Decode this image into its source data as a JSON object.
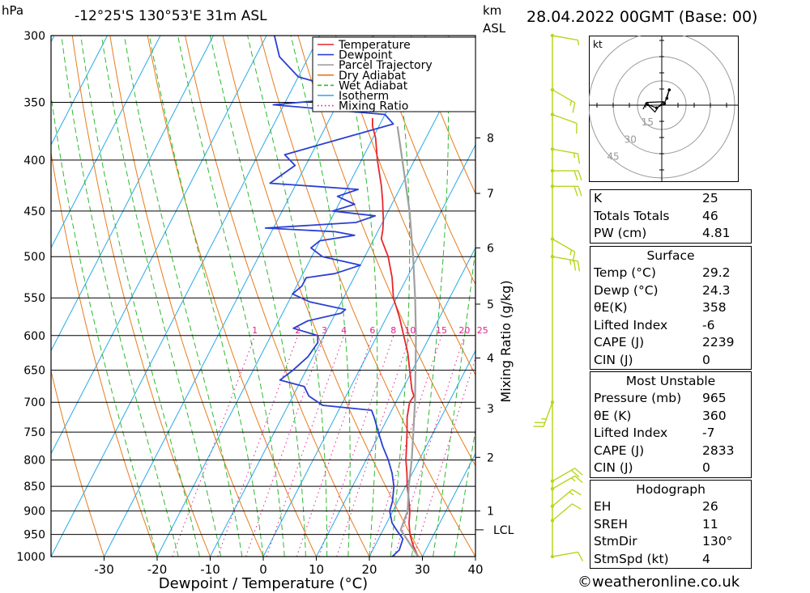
{
  "header": {
    "pressure_unit": "hPa",
    "location": "-12°25'S  130°53'E  31m  ASL",
    "height_unit_km": "km",
    "height_unit_asl": "ASL",
    "datetime": "28.04.2022  00GMT  (Base: 00)"
  },
  "footer": {
    "copyright": "©weatheronline.co.uk"
  },
  "hodograph": {
    "unit_label": "kt",
    "ring_labels": [
      "15",
      "30",
      "45"
    ]
  },
  "colors": {
    "temperature": "#e8262d",
    "dewpoint": "#2b3fd3",
    "parcel": "#a0a0a0",
    "dry_adiabat": "#e87b1b",
    "wet_adiabat": "#2fb92f",
    "isotherm": "#29a9e8",
    "mixing_ratio": "#e0208a",
    "wind_barb": "#b7d61e"
  },
  "indices": {
    "basic": [
      {
        "label": "K",
        "value": "25"
      },
      {
        "label": "Totals Totals",
        "value": "46"
      },
      {
        "label": "PW (cm)",
        "value": "4.81"
      }
    ],
    "surface_title": "Surface",
    "surface": [
      {
        "label": "Temp (°C)",
        "value": "29.2"
      },
      {
        "label": "Dewp (°C)",
        "value": "24.3"
      },
      {
        "label": "θE(K)",
        "value": "358"
      },
      {
        "label": "Lifted Index",
        "value": "-6"
      },
      {
        "label": "CAPE (J)",
        "value": "2239"
      },
      {
        "label": "CIN (J)",
        "value": "0"
      }
    ],
    "mu_title": "Most Unstable",
    "mu": [
      {
        "label": "Pressure (mb)",
        "value": "965"
      },
      {
        "label": "θE (K)",
        "value": "360"
      },
      {
        "label": "Lifted Index",
        "value": "-7"
      },
      {
        "label": "CAPE (J)",
        "value": "2833"
      },
      {
        "label": "CIN (J)",
        "value": "0"
      }
    ],
    "hodo_title": "Hodograph",
    "hodo": [
      {
        "label": "EH",
        "value": "26"
      },
      {
        "label": "SREH",
        "value": "11"
      },
      {
        "label": "StmDir",
        "value": "130°"
      },
      {
        "label": "StmSpd (kt)",
        "value": "4"
      }
    ]
  },
  "chart_data": {
    "type": "line",
    "subtype": "skew-T log-P sounding",
    "xlabel": "Dewpoint / Temperature (°C)",
    "ylabel": "Mixing Ratio (g/kg)",
    "pressure_range_hpa": [
      1000,
      300
    ],
    "pressure_ticks": [
      300,
      350,
      400,
      450,
      500,
      550,
      600,
      650,
      700,
      750,
      800,
      850,
      900,
      950,
      1000
    ],
    "temperature_ticks": [
      -30,
      -20,
      -10,
      0,
      10,
      20,
      30,
      40
    ],
    "temperature_range_at_1000": [
      -40,
      40
    ],
    "height_ticks_km": [
      {
        "label": "1",
        "p": 900
      },
      {
        "label": "2",
        "p": 795
      },
      {
        "label": "3",
        "p": 710
      },
      {
        "label": "4",
        "p": 632
      },
      {
        "label": "5",
        "p": 558
      },
      {
        "label": "6",
        "p": 490
      },
      {
        "label": "7",
        "p": 432
      },
      {
        "label": "8",
        "p": 380
      }
    ],
    "lcl": {
      "label": "LCL",
      "p": 940
    },
    "mixing_ratio_labels": [
      "1",
      "2",
      "3",
      "4",
      "6",
      "8",
      "10",
      "15",
      "20",
      "25"
    ],
    "mixing_ratio_values": [
      1,
      2,
      3,
      4,
      6,
      8,
      10,
      15,
      20,
      25
    ],
    "legend": [
      "Temperature",
      "Dewpoint",
      "Parcel Trajectory",
      "Dry Adiabat",
      "Wet Adiabat",
      "Isotherm",
      "Mixing Ratio"
    ],
    "series": [
      {
        "name": "Temperature",
        "points": [
          [
            1000,
            29.2
          ],
          [
            975,
            27.2
          ],
          [
            950,
            25.5
          ],
          [
            925,
            24.2
          ],
          [
            900,
            23.2
          ],
          [
            875,
            21.8
          ],
          [
            850,
            20.3
          ],
          [
            825,
            19.0
          ],
          [
            800,
            17.5
          ],
          [
            775,
            16.3
          ],
          [
            750,
            15.0
          ],
          [
            725,
            13.6
          ],
          [
            700,
            12.6
          ],
          [
            690,
            12.8
          ],
          [
            680,
            11.8
          ],
          [
            650,
            9.5
          ],
          [
            625,
            7.5
          ],
          [
            600,
            5.0
          ],
          [
            575,
            2.4
          ],
          [
            550,
            -0.6
          ],
          [
            525,
            -2.8
          ],
          [
            500,
            -5.6
          ],
          [
            480,
            -8.6
          ],
          [
            470,
            -9.2
          ],
          [
            460,
            -10.0
          ],
          [
            450,
            -11.0
          ],
          [
            440,
            -12.0
          ],
          [
            425,
            -13.7
          ],
          [
            400,
            -17.0
          ],
          [
            380,
            -19.5
          ],
          [
            370,
            -21.2
          ],
          [
            363,
            -22.0
          ]
        ]
      },
      {
        "name": "Dewpoint",
        "points": [
          [
            1000,
            24.3
          ],
          [
            985,
            25.0
          ],
          [
            960,
            24.6
          ],
          [
            940,
            22.5
          ],
          [
            925,
            21.0
          ],
          [
            900,
            19.4
          ],
          [
            880,
            19.0
          ],
          [
            850,
            17.8
          ],
          [
            825,
            16.2
          ],
          [
            800,
            14.2
          ],
          [
            775,
            11.8
          ],
          [
            750,
            9.6
          ],
          [
            725,
            7.4
          ],
          [
            713,
            6.2
          ],
          [
            705,
            -3.5
          ],
          [
            690,
            -7.0
          ],
          [
            675,
            -8.8
          ],
          [
            665,
            -14.0
          ],
          [
            650,
            -12.5
          ],
          [
            630,
            -11.0
          ],
          [
            610,
            -10.5
          ],
          [
            600,
            -11.2
          ],
          [
            590,
            -16.5
          ],
          [
            580,
            -14.5
          ],
          [
            570,
            -9.0
          ],
          [
            565,
            -8.5
          ],
          [
            555,
            -16.0
          ],
          [
            545,
            -20.0
          ],
          [
            535,
            -19.0
          ],
          [
            525,
            -19.0
          ],
          [
            520,
            -14.0
          ],
          [
            510,
            -10.0
          ],
          [
            500,
            -18.0
          ],
          [
            490,
            -21.0
          ],
          [
            482,
            -20.0
          ],
          [
            476,
            -14.0
          ],
          [
            472,
            -18.0
          ],
          [
            468,
            -31.5
          ],
          [
            462,
            -15.0
          ],
          [
            455,
            -12.0
          ],
          [
            450,
            -20.5
          ],
          [
            443,
            -17.0
          ],
          [
            435,
            -21.0
          ],
          [
            428,
            -17.8
          ],
          [
            422,
            -35.0
          ],
          [
            405,
            -32.0
          ],
          [
            395,
            -35.0
          ],
          [
            368,
            -17.5
          ],
          [
            360,
            -20.0
          ],
          [
            352,
            -42.0
          ],
          [
            345,
            -25.0
          ],
          [
            330,
            -40.0
          ],
          [
            315,
            -45.5
          ],
          [
            300,
            -48.5
          ]
        ]
      },
      {
        "name": "Parcel Trajectory",
        "points": [
          [
            1000,
            29.2
          ],
          [
            940,
            23.3
          ],
          [
            900,
            22.8
          ],
          [
            850,
            20.6
          ],
          [
            800,
            18.6
          ],
          [
            750,
            16.2
          ],
          [
            700,
            13.6
          ],
          [
            650,
            10.6
          ],
          [
            600,
            7.3
          ],
          [
            550,
            3.5
          ],
          [
            500,
            -0.9
          ],
          [
            450,
            -6.0
          ],
          [
            400,
            -12.3
          ],
          [
            370,
            -16.5
          ]
        ]
      }
    ],
    "wind_barbs": [
      {
        "p": 300,
        "dir": 100,
        "spd": 5
      },
      {
        "p": 340,
        "dir": 120,
        "spd": 15
      },
      {
        "p": 360,
        "dir": 110,
        "spd": 10
      },
      {
        "p": 390,
        "dir": 100,
        "spd": 15
      },
      {
        "p": 410,
        "dir": 90,
        "spd": 20
      },
      {
        "p": 425,
        "dir": 90,
        "spd": 20
      },
      {
        "p": 480,
        "dir": 120,
        "spd": 15
      },
      {
        "p": 500,
        "dir": 100,
        "spd": 25
      },
      {
        "p": 700,
        "dir": 200,
        "spd": 25
      },
      {
        "p": 840,
        "dir": 60,
        "spd": 20
      },
      {
        "p": 855,
        "dir": 60,
        "spd": 15
      },
      {
        "p": 890,
        "dir": 50,
        "spd": 15
      },
      {
        "p": 920,
        "dir": 50,
        "spd": 10
      },
      {
        "p": 1000,
        "dir": 80,
        "spd": 10
      }
    ],
    "hodograph_points": [
      [
        1.5,
        2.0
      ],
      [
        2.2,
        4.5
      ],
      [
        0.8,
        0.5
      ],
      [
        -1.5,
        -0.8
      ],
      [
        -4.2,
        0.2
      ],
      [
        -2.0,
        -2.0
      ],
      [
        -1.0,
        -0.5
      ],
      [
        0.5,
        1.0
      ],
      [
        -4.5,
        0.8
      ],
      [
        -5.5,
        -1.2
      ]
    ]
  }
}
